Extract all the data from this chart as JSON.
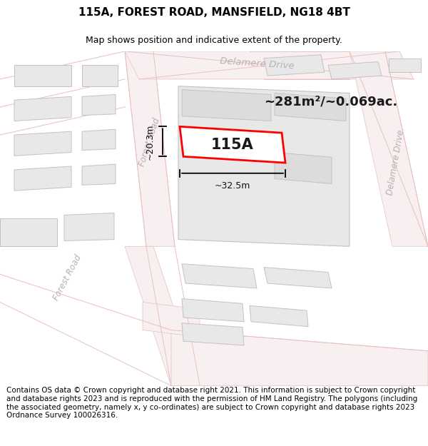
{
  "title": "115A, FOREST ROAD, MANSFIELD, NG18 4BT",
  "subtitle": "Map shows position and indicative extent of the property.",
  "footer": "Contains OS data © Crown copyright and database right 2021. This information is subject to Crown copyright and database rights 2023 and is reproduced with the permission of HM Land Registry. The polygons (including the associated geometry, namely x, y co-ordinates) are subject to Crown copyright and database rights 2023 Ordnance Survey 100026316.",
  "area_text": "~281m²/~0.069ac.",
  "label_text": "115A",
  "dim_width": "~32.5m",
  "dim_height": "~20.3m",
  "map_bg": "#f9f6f6",
  "road_fill": "#f8f0f0",
  "road_edge": "#e8c8c8",
  "road_line": "#e8c0c0",
  "building_fill": "#e8e8e8",
  "building_edge": "#c8c0c0",
  "building_fill2": "#dcdcdc",
  "highlight_color": "#ff0000",
  "street_label_color": "#b8b0b0",
  "title_fontsize": 11,
  "subtitle_fontsize": 9,
  "footer_fontsize": 7.5,
  "map_xlim": [
    0,
    600
  ],
  "map_ylim": [
    0,
    480
  ]
}
